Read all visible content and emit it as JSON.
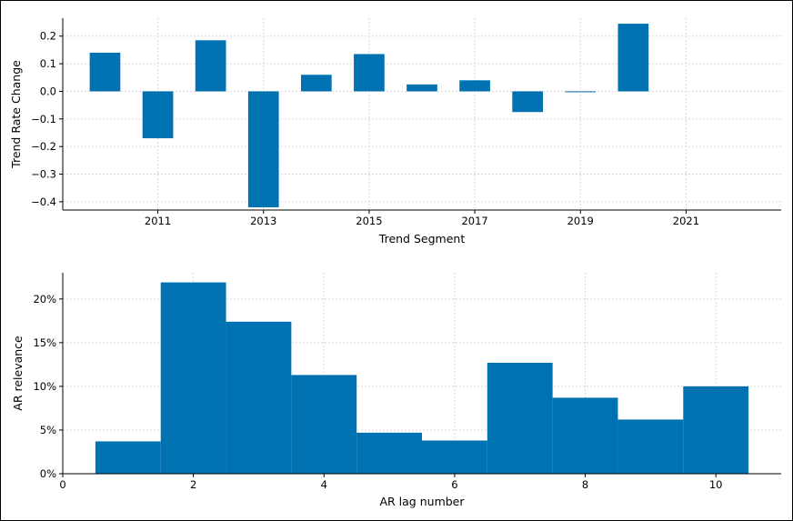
{
  "chart_data": [
    {
      "type": "bar",
      "xlabel": "Trend Segment",
      "ylabel": "Trend Rate Change",
      "x_ticks": [
        "2011",
        "2013",
        "2015",
        "2017",
        "2019",
        "2021"
      ],
      "y_ticks": [
        "0.2",
        "0.1",
        "0.0",
        "−0.1",
        "−0.2",
        "−0.3",
        "−0.4"
      ],
      "ylim": [
        -0.43,
        0.265
      ],
      "xlim": [
        2009.2,
        2022.8
      ],
      "grid": true,
      "bar_color": "#0072b2",
      "points": [
        {
          "x": 2010.0,
          "value": 0.14
        },
        {
          "x": 2011.0,
          "value": -0.17
        },
        {
          "x": 2012.0,
          "value": 0.185
        },
        {
          "x": 2013.0,
          "value": -0.42
        },
        {
          "x": 2014.0,
          "value": 0.06
        },
        {
          "x": 2015.0,
          "value": 0.135
        },
        {
          "x": 2016.0,
          "value": 0.025
        },
        {
          "x": 2017.0,
          "value": 0.04
        },
        {
          "x": 2018.0,
          "value": -0.075
        },
        {
          "x": 2019.0,
          "value": -0.003
        },
        {
          "x": 2020.0,
          "value": 0.245
        }
      ]
    },
    {
      "type": "bar",
      "xlabel": "AR lag number",
      "ylabel": "AR relevance",
      "x_ticks": [
        "0",
        "2",
        "4",
        "6",
        "8",
        "10"
      ],
      "y_ticks": [
        "0%",
        "5%",
        "10%",
        "15%",
        "20%"
      ],
      "ylim": [
        0,
        0.23
      ],
      "xlim": [
        0,
        11
      ],
      "grid": true,
      "bar_color": "#0072b2",
      "points": [
        {
          "x": 1,
          "value": 0.037
        },
        {
          "x": 2,
          "value": 0.219
        },
        {
          "x": 3,
          "value": 0.174
        },
        {
          "x": 4,
          "value": 0.113
        },
        {
          "x": 5,
          "value": 0.047
        },
        {
          "x": 6,
          "value": 0.038
        },
        {
          "x": 7,
          "value": 0.127
        },
        {
          "x": 8,
          "value": 0.087
        },
        {
          "x": 9,
          "value": 0.062
        },
        {
          "x": 10,
          "value": 0.1
        }
      ]
    }
  ]
}
